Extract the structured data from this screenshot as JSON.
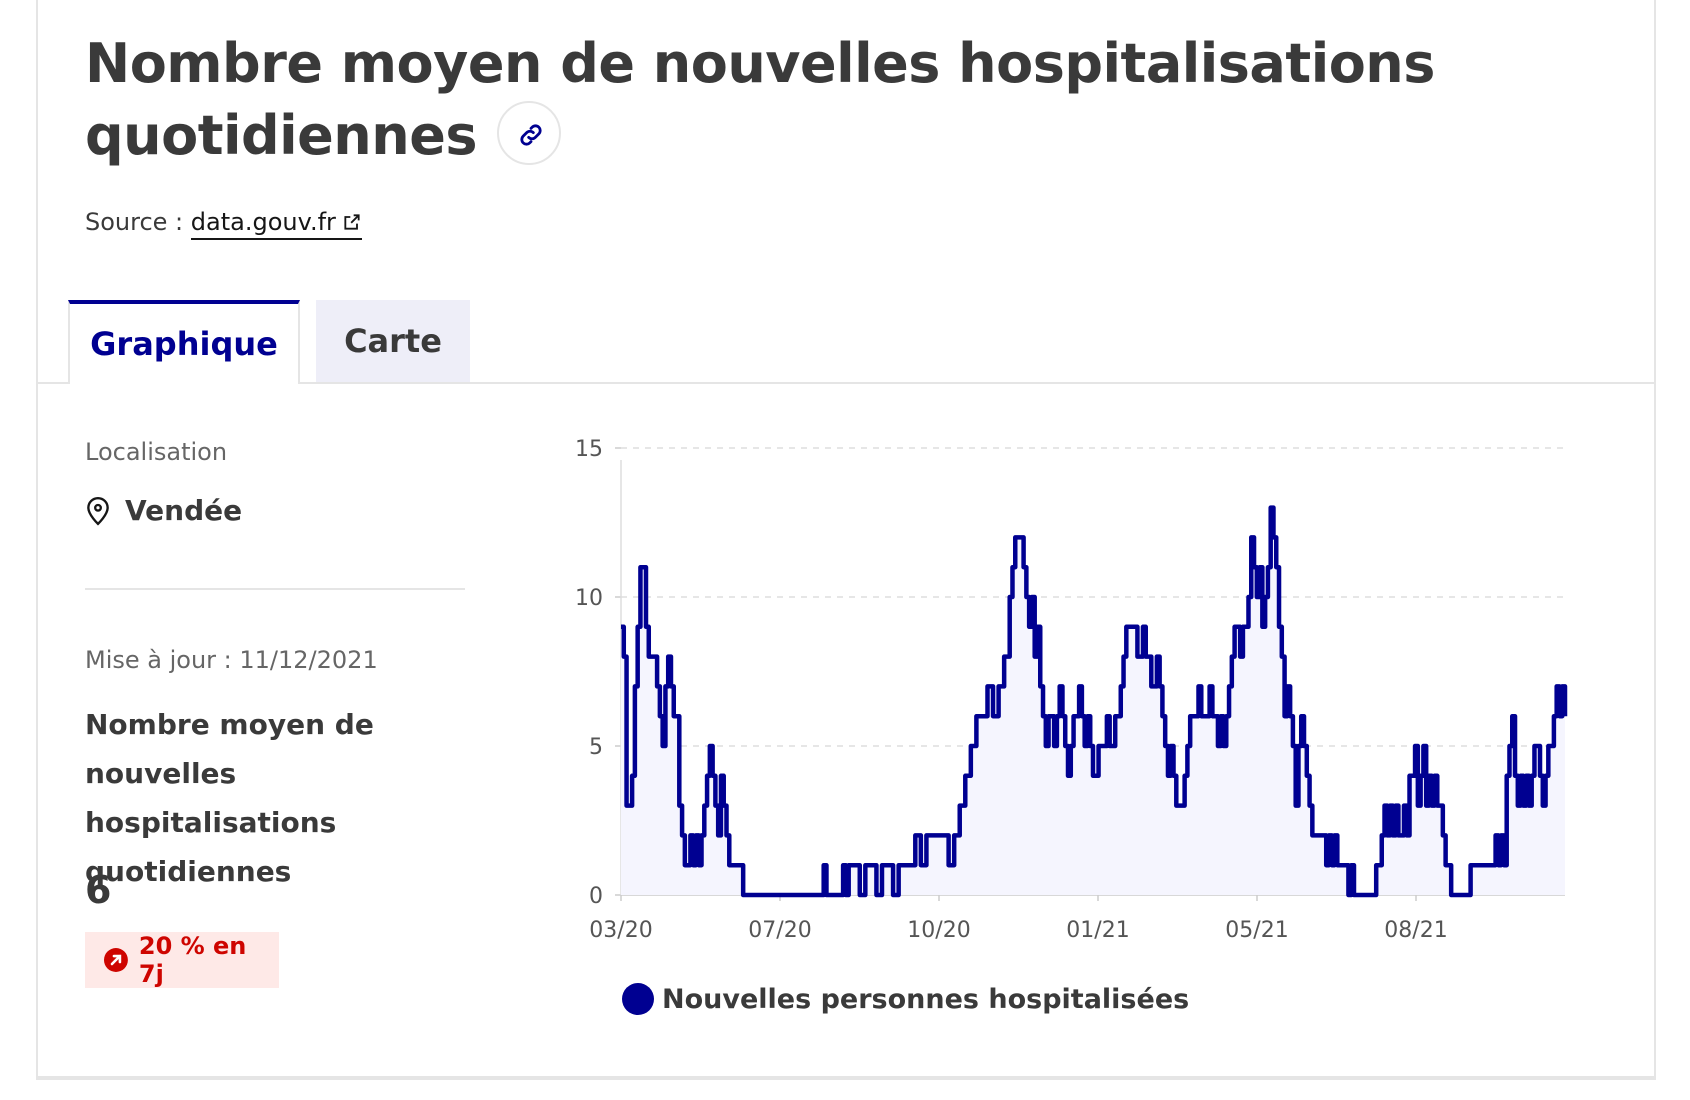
{
  "page": {
    "title": "Nombre moyen de nouvelles hospitalisations quotidiennes",
    "source_label": "Source :",
    "source_link": "data.gouv.fr"
  },
  "tabs": [
    {
      "label": "Graphique",
      "active": true
    },
    {
      "label": "Carte",
      "active": false
    }
  ],
  "sidebar": {
    "location_label": "Localisation",
    "location_value": "Vendée",
    "update_text": "Mise à jour : 11/12/2021",
    "metric_name": "Nombre moyen de nouvelles hospitalisations quotidiennes",
    "metric_value": "6",
    "trend_text": "20 % en 7j",
    "trend_direction": "up"
  },
  "colors": {
    "accent": "#000091",
    "area_fill": "#f5f5fe",
    "trend_text": "#ce0500",
    "trend_bg": "#fee9e7",
    "grid": "#dddddd"
  },
  "chart_data": {
    "type": "area",
    "ylim": [
      0,
      15
    ],
    "y_ticks": [
      "0",
      "5",
      "10",
      "15"
    ],
    "x_ticks": [
      "03/20",
      "07/20",
      "10/20",
      "01/21",
      "05/21",
      "08/21"
    ],
    "grid": "horizontal dashed",
    "legend_position": "bottom",
    "series": [
      {
        "name": "Nouvelles personnes hospitalisées",
        "points": [
          [
            0,
            9
          ],
          [
            1,
            8
          ],
          [
            2,
            3
          ],
          [
            3,
            3
          ],
          [
            4,
            4
          ],
          [
            5,
            7
          ],
          [
            6,
            9
          ],
          [
            7,
            11
          ],
          [
            8,
            11
          ],
          [
            9,
            9
          ],
          [
            10,
            8
          ],
          [
            11,
            8
          ],
          [
            12,
            8
          ],
          [
            13,
            7
          ],
          [
            14,
            6
          ],
          [
            15,
            5
          ],
          [
            16,
            7
          ],
          [
            17,
            8
          ],
          [
            18,
            7
          ],
          [
            19,
            6
          ],
          [
            20,
            6
          ],
          [
            21,
            3
          ],
          [
            22,
            2
          ],
          [
            23,
            1
          ],
          [
            24,
            1
          ],
          [
            25,
            2
          ],
          [
            26,
            1
          ],
          [
            27,
            2
          ],
          [
            28,
            1
          ],
          [
            29,
            2
          ],
          [
            30,
            3
          ],
          [
            31,
            4
          ],
          [
            32,
            5
          ],
          [
            33,
            4
          ],
          [
            34,
            3
          ],
          [
            35,
            2
          ],
          [
            36,
            4
          ],
          [
            37,
            3
          ],
          [
            38,
            2
          ],
          [
            39,
            1
          ],
          [
            40,
            1
          ],
          [
            41,
            1
          ],
          [
            42,
            1
          ],
          [
            43,
            1
          ],
          [
            44,
            0
          ],
          [
            46,
            0
          ],
          [
            48,
            0
          ],
          [
            50,
            0
          ],
          [
            52,
            0
          ],
          [
            54,
            0
          ],
          [
            56,
            0
          ],
          [
            58,
            0
          ],
          [
            60,
            0
          ],
          [
            62,
            0
          ],
          [
            64,
            0
          ],
          [
            66,
            0
          ],
          [
            68,
            0
          ],
          [
            70,
            0
          ],
          [
            72,
            0
          ],
          [
            73,
            1
          ],
          [
            74,
            0
          ],
          [
            76,
            0
          ],
          [
            78,
            0
          ],
          [
            80,
            1
          ],
          [
            81,
            0
          ],
          [
            82,
            1
          ],
          [
            84,
            1
          ],
          [
            86,
            0
          ],
          [
            88,
            1
          ],
          [
            90,
            1
          ],
          [
            92,
            0
          ],
          [
            94,
            1
          ],
          [
            96,
            1
          ],
          [
            98,
            0
          ],
          [
            100,
            1
          ],
          [
            102,
            1
          ],
          [
            104,
            1
          ],
          [
            106,
            2
          ],
          [
            108,
            1
          ],
          [
            110,
            2
          ],
          [
            112,
            2
          ],
          [
            114,
            2
          ],
          [
            116,
            2
          ],
          [
            118,
            1
          ],
          [
            120,
            2
          ],
          [
            122,
            3
          ],
          [
            124,
            4
          ],
          [
            126,
            5
          ],
          [
            128,
            6
          ],
          [
            130,
            6
          ],
          [
            132,
            7
          ],
          [
            134,
            6
          ],
          [
            136,
            7
          ],
          [
            138,
            8
          ],
          [
            140,
            10
          ],
          [
            141,
            11
          ],
          [
            142,
            12
          ],
          [
            144,
            12
          ],
          [
            145,
            11
          ],
          [
            146,
            10
          ],
          [
            147,
            9
          ],
          [
            148,
            10
          ],
          [
            149,
            8
          ],
          [
            150,
            9
          ],
          [
            151,
            7
          ],
          [
            152,
            6
          ],
          [
            153,
            5
          ],
          [
            154,
            6
          ],
          [
            155,
            6
          ],
          [
            156,
            5
          ],
          [
            157,
            6
          ],
          [
            158,
            7
          ],
          [
            159,
            6
          ],
          [
            160,
            5
          ],
          [
            161,
            4
          ],
          [
            162,
            5
          ],
          [
            163,
            6
          ],
          [
            164,
            6
          ],
          [
            165,
            7
          ],
          [
            166,
            6
          ],
          [
            167,
            5
          ],
          [
            168,
            6
          ],
          [
            169,
            5
          ],
          [
            170,
            4
          ],
          [
            171,
            4
          ],
          [
            172,
            5
          ],
          [
            173,
            5
          ],
          [
            174,
            5
          ],
          [
            175,
            6
          ],
          [
            176,
            5
          ],
          [
            177,
            5
          ],
          [
            178,
            6
          ],
          [
            179,
            6
          ],
          [
            180,
            7
          ],
          [
            181,
            8
          ],
          [
            182,
            9
          ],
          [
            183,
            9
          ],
          [
            184,
            9
          ],
          [
            185,
            9
          ],
          [
            186,
            8
          ],
          [
            187,
            8
          ],
          [
            188,
            9
          ],
          [
            189,
            8
          ],
          [
            190,
            8
          ],
          [
            191,
            7
          ],
          [
            192,
            7
          ],
          [
            193,
            8
          ],
          [
            194,
            7
          ],
          [
            195,
            6
          ],
          [
            196,
            5
          ],
          [
            197,
            4
          ],
          [
            198,
            5
          ],
          [
            199,
            4
          ],
          [
            200,
            3
          ],
          [
            201,
            3
          ],
          [
            202,
            3
          ],
          [
            203,
            4
          ],
          [
            204,
            5
          ],
          [
            205,
            6
          ],
          [
            206,
            6
          ],
          [
            207,
            6
          ],
          [
            208,
            7
          ],
          [
            209,
            6
          ],
          [
            210,
            6
          ],
          [
            211,
            6
          ],
          [
            212,
            7
          ],
          [
            213,
            6
          ],
          [
            214,
            6
          ],
          [
            215,
            5
          ],
          [
            216,
            6
          ],
          [
            217,
            5
          ],
          [
            218,
            6
          ],
          [
            219,
            7
          ],
          [
            220,
            8
          ],
          [
            221,
            9
          ],
          [
            222,
            9
          ],
          [
            223,
            8
          ],
          [
            224,
            9
          ],
          [
            225,
            9
          ],
          [
            226,
            10
          ],
          [
            227,
            12
          ],
          [
            228,
            11
          ],
          [
            229,
            10
          ],
          [
            230,
            11
          ],
          [
            231,
            9
          ],
          [
            232,
            10
          ],
          [
            233,
            11
          ],
          [
            234,
            13
          ],
          [
            235,
            12
          ],
          [
            236,
            11
          ],
          [
            237,
            9
          ],
          [
            238,
            8
          ],
          [
            239,
            6
          ],
          [
            240,
            7
          ],
          [
            241,
            6
          ],
          [
            242,
            5
          ],
          [
            243,
            3
          ],
          [
            244,
            5
          ],
          [
            245,
            6
          ],
          [
            246,
            5
          ],
          [
            247,
            4
          ],
          [
            248,
            3
          ],
          [
            249,
            2
          ],
          [
            250,
            2
          ],
          [
            251,
            2
          ],
          [
            252,
            2
          ],
          [
            253,
            2
          ],
          [
            254,
            1
          ],
          [
            255,
            2
          ],
          [
            256,
            1
          ],
          [
            257,
            2
          ],
          [
            258,
            1
          ],
          [
            259,
            1
          ],
          [
            260,
            1
          ],
          [
            261,
            1
          ],
          [
            262,
            0
          ],
          [
            263,
            1
          ],
          [
            264,
            0
          ],
          [
            266,
            0
          ],
          [
            268,
            0
          ],
          [
            270,
            0
          ],
          [
            272,
            1
          ],
          [
            274,
            2
          ],
          [
            275,
            3
          ],
          [
            276,
            2
          ],
          [
            277,
            3
          ],
          [
            278,
            2
          ],
          [
            279,
            3
          ],
          [
            280,
            2
          ],
          [
            281,
            2
          ],
          [
            282,
            3
          ],
          [
            283,
            2
          ],
          [
            284,
            4
          ],
          [
            285,
            4
          ],
          [
            286,
            5
          ],
          [
            287,
            3
          ],
          [
            288,
            4
          ],
          [
            289,
            5
          ],
          [
            290,
            3
          ],
          [
            291,
            4
          ],
          [
            292,
            3
          ],
          [
            293,
            4
          ],
          [
            294,
            3
          ],
          [
            295,
            3
          ],
          [
            296,
            2
          ],
          [
            297,
            1
          ],
          [
            298,
            1
          ],
          [
            299,
            0
          ],
          [
            300,
            0
          ],
          [
            302,
            0
          ],
          [
            304,
            0
          ],
          [
            306,
            1
          ],
          [
            308,
            1
          ],
          [
            310,
            1
          ],
          [
            312,
            1
          ],
          [
            314,
            1
          ],
          [
            315,
            2
          ],
          [
            316,
            1
          ],
          [
            317,
            2
          ],
          [
            318,
            1
          ],
          [
            319,
            4
          ],
          [
            320,
            5
          ],
          [
            321,
            6
          ],
          [
            322,
            4
          ],
          [
            323,
            3
          ],
          [
            324,
            4
          ],
          [
            325,
            3
          ],
          [
            326,
            4
          ],
          [
            327,
            3
          ],
          [
            328,
            4
          ],
          [
            329,
            5
          ],
          [
            330,
            5
          ],
          [
            331,
            4
          ],
          [
            332,
            3
          ],
          [
            333,
            4
          ],
          [
            334,
            5
          ],
          [
            335,
            5
          ],
          [
            336,
            6
          ],
          [
            337,
            7
          ],
          [
            338,
            6
          ],
          [
            339,
            7
          ],
          [
            340,
            6
          ]
        ]
      }
    ]
  }
}
